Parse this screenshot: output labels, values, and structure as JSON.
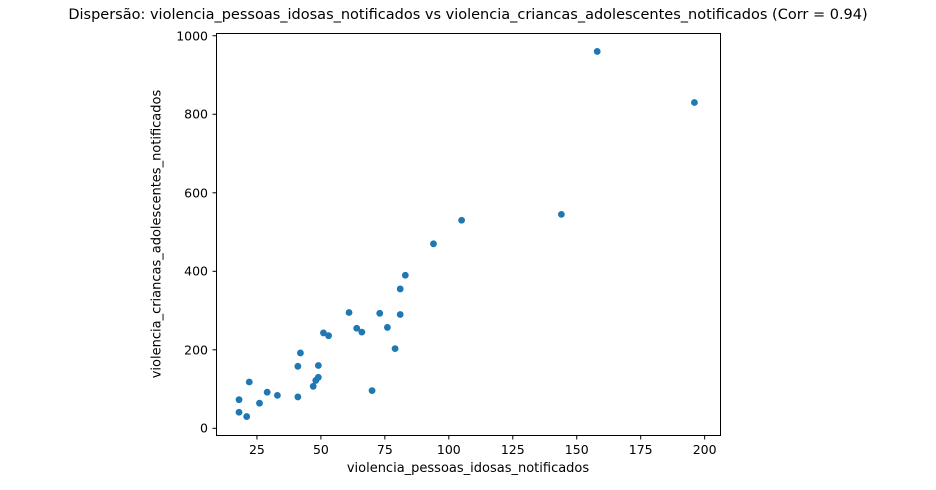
{
  "chart_data": {
    "type": "scatter",
    "title": "Dispersão: violencia_pessoas_idosas_notificados vs violencia_criancas_adolescentes_notificados (Corr = 0.94)",
    "xlabel": "violencia_pessoas_idosas_notificados",
    "ylabel": "violencia_criancas_adolescentes_notificados",
    "correlation": 0.94,
    "xlim": [
      9,
      206
    ],
    "ylim": [
      -17,
      1007
    ],
    "xticks": [
      25,
      50,
      75,
      100,
      125,
      150,
      175,
      200
    ],
    "yticks": [
      0,
      200,
      400,
      600,
      800,
      1000
    ],
    "grid": false,
    "legend": "none",
    "marker_color": "#1f77b4",
    "axis_color": "#000000",
    "points": [
      [
        18,
        73
      ],
      [
        18,
        41
      ],
      [
        21,
        30
      ],
      [
        22,
        118
      ],
      [
        26,
        64
      ],
      [
        29,
        92
      ],
      [
        33,
        84
      ],
      [
        41,
        80
      ],
      [
        41,
        158
      ],
      [
        42,
        192
      ],
      [
        47,
        107
      ],
      [
        48,
        122
      ],
      [
        49,
        130
      ],
      [
        49,
        160
      ],
      [
        51,
        243
      ],
      [
        53,
        236
      ],
      [
        61,
        295
      ],
      [
        64,
        255
      ],
      [
        66,
        245
      ],
      [
        70,
        96
      ],
      [
        73,
        293
      ],
      [
        76,
        257
      ],
      [
        79,
        203
      ],
      [
        81,
        290
      ],
      [
        81,
        355
      ],
      [
        83,
        390
      ],
      [
        94,
        470
      ],
      [
        105,
        530
      ],
      [
        144,
        545
      ],
      [
        158,
        960
      ],
      [
        196,
        830
      ]
    ]
  }
}
